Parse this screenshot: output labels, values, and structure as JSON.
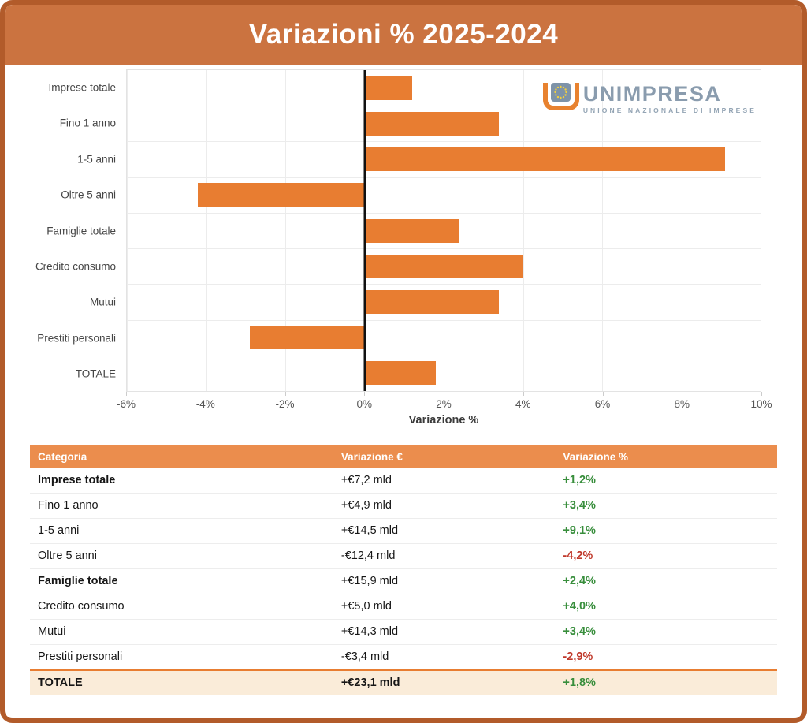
{
  "header": {
    "title": "Variazioni % 2025-2024"
  },
  "logo": {
    "name": "UNIMPRESA",
    "tagline": "UNIONE NAZIONALE DI IMPRESE"
  },
  "chart_data": {
    "type": "bar",
    "orientation": "horizontal",
    "title": "Variazioni % 2025-2024",
    "categories": [
      "Imprese totale",
      "Fino 1 anno",
      "1-5 anni",
      "Oltre 5 anni",
      "Famiglie totale",
      "Credito consumo",
      "Mutui",
      "Prestiti personali",
      "TOTALE"
    ],
    "values": [
      1.2,
      3.4,
      9.1,
      -4.2,
      2.4,
      4.0,
      3.4,
      -2.9,
      1.8
    ],
    "xlabel": "Variazione %",
    "xlim": [
      -6,
      10
    ],
    "xticks": [
      -6,
      -4,
      -2,
      0,
      2,
      4,
      6,
      8,
      10
    ],
    "xtick_labels": [
      "-6%",
      "-4%",
      "-2%",
      "0%",
      "2%",
      "4%",
      "6%",
      "8%",
      "10%"
    ],
    "bar_color": "#e87d31",
    "grid": true,
    "zero_line": true,
    "legend": false
  },
  "table": {
    "columns": [
      "Categoria",
      "Variazione €",
      "Variazione %"
    ],
    "rows": [
      {
        "categoria": "Imprese totale",
        "euro": "+€7,2 mld",
        "pct": "+1,2%",
        "bold": true,
        "trend": "up"
      },
      {
        "categoria": "Fino 1 anno",
        "euro": "+€4,9 mld",
        "pct": "+3,4%",
        "bold": false,
        "trend": "up"
      },
      {
        "categoria": "1-5 anni",
        "euro": "+€14,5 mld",
        "pct": "+9,1%",
        "bold": false,
        "trend": "up"
      },
      {
        "categoria": "Oltre 5 anni",
        "euro": "-€12,4 mld",
        "pct": "-4,2%",
        "bold": false,
        "trend": "down"
      },
      {
        "categoria": "Famiglie totale",
        "euro": "+€15,9 mld",
        "pct": "+2,4%",
        "bold": true,
        "trend": "up"
      },
      {
        "categoria": "Credito consumo",
        "euro": "+€5,0 mld",
        "pct": "+4,0%",
        "bold": false,
        "trend": "up"
      },
      {
        "categoria": "Mutui",
        "euro": "+€14,3 mld",
        "pct": "+3,4%",
        "bold": false,
        "trend": "up"
      },
      {
        "categoria": "Prestiti personali",
        "euro": "-€3,4 mld",
        "pct": "-2,9%",
        "bold": false,
        "trend": "down"
      }
    ],
    "total_row": {
      "categoria": "TOTALE",
      "euro": "+€23,1 mld",
      "pct": "+1,8%",
      "trend": "up"
    }
  },
  "colors": {
    "frame_border": "#b25b2a",
    "header_bg": "#cb7340",
    "bar_orange": "#e87d31",
    "table_header_bg": "#eb8d4d",
    "total_row_bg": "#faecd9",
    "positive": "#388e3c",
    "negative": "#c0392b",
    "logo_blue": "#8a9cae",
    "logo_orange": "#e8822f",
    "eu_star_yellow": "#f2cf3e"
  }
}
